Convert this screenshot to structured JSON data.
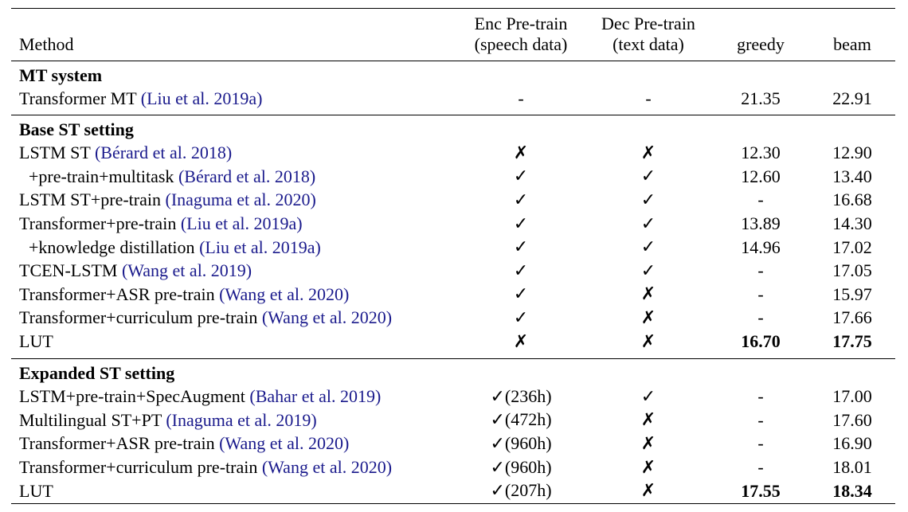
{
  "table": {
    "headers": {
      "method": "Method",
      "enc": [
        "Enc Pre-train",
        "(speech data)"
      ],
      "dec": [
        "Dec Pre-train",
        "(text data)"
      ],
      "greedy": "greedy",
      "beam": "beam"
    },
    "sections": [
      {
        "title": "MT system",
        "rows": [
          {
            "name": "Transformer MT ",
            "cite": "(Liu et al. 2019a)",
            "enc": "-",
            "dec": "-",
            "greedy": "21.35",
            "beam": "22.91"
          }
        ]
      },
      {
        "title": "Base ST setting",
        "rows": [
          {
            "name": "LSTM ST ",
            "cite": "(Bérard et al. 2018)",
            "enc": "✗",
            "dec": "✗",
            "greedy": "12.30",
            "beam": "12.90"
          },
          {
            "name": "+pre-train+multitask ",
            "cite": "(Bérard et al. 2018)",
            "enc": "✓",
            "dec": "✓",
            "greedy": "12.60",
            "beam": "13.40"
          },
          {
            "name": "LSTM ST+pre-train ",
            "cite": "(Inaguma et al. 2020)",
            "enc": "✓",
            "dec": "✓",
            "greedy": "-",
            "beam": "16.68"
          },
          {
            "name": "Transformer+pre-train ",
            "cite": "(Liu et al. 2019a)",
            "enc": "✓",
            "dec": "✓",
            "greedy": "13.89",
            "beam": "14.30"
          },
          {
            "name": "+knowledge distillation ",
            "cite": "(Liu et al. 2019a)",
            "enc": "✓",
            "dec": "✓",
            "greedy": "14.96",
            "beam": "17.02"
          },
          {
            "name": "TCEN-LSTM ",
            "cite": "(Wang et al. 2019)",
            "enc": "✓",
            "dec": "✓",
            "greedy": "-",
            "beam": "17.05"
          },
          {
            "name": "Transformer+ASR pre-train ",
            "cite": "(Wang et al. 2020)",
            "enc": "✓",
            "dec": "✗",
            "greedy": "-",
            "beam": "15.97"
          },
          {
            "name": "Transformer+curriculum pre-train ",
            "cite": "(Wang et al. 2020)",
            "enc": "✓",
            "dec": "✗",
            "greedy": "-",
            "beam": "17.66"
          },
          {
            "name": "LUT",
            "cite": "",
            "enc": "✗",
            "dec": "✗",
            "greedy": "16.70",
            "beam": "17.75"
          }
        ]
      },
      {
        "title": "Expanded ST setting",
        "rows": [
          {
            "name": "LSTM+pre-train+SpecAugment ",
            "cite": "(Bahar et al. 2019)",
            "enc": "✓",
            "enc_hours": "(236h)",
            "dec": "✓",
            "greedy": "-",
            "beam": "17.00"
          },
          {
            "name": "Multilingual ST+PT ",
            "cite": "(Inaguma et al. 2019)",
            "enc": "✓",
            "enc_hours": "(472h)",
            "dec": "✗",
            "greedy": "-",
            "beam": "17.60"
          },
          {
            "name": "Transformer+ASR pre-train ",
            "cite": "(Wang et al. 2020)",
            "enc": "✓",
            "enc_hours": "(960h)",
            "dec": "✗",
            "greedy": "-",
            "beam": "16.90"
          },
          {
            "name": "Transformer+curriculum pre-train ",
            "cite": "(Wang et al. 2020)",
            "enc": "✓",
            "enc_hours": "(960h)",
            "dec": "✗",
            "greedy": "-",
            "beam": "18.01"
          },
          {
            "name": "LUT",
            "cite": "",
            "enc": "✓",
            "enc_hours": "(207h)",
            "dec": "✗",
            "greedy": "17.55",
            "beam": "18.34"
          }
        ]
      }
    ]
  }
}
